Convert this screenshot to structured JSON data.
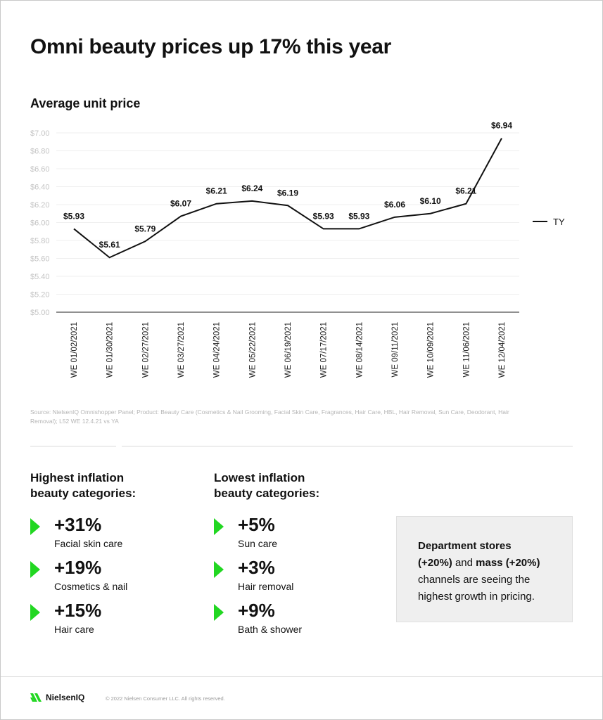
{
  "header": {
    "title": "Omni beauty prices up 17% this year",
    "subtitle": "Average unit price"
  },
  "chart_data": {
    "type": "line",
    "title": "Average unit price",
    "xlabel": "",
    "ylabel": "",
    "categories": [
      "WE 01/02/2021",
      "WE 01/30/2021",
      "WE 02/27/2021",
      "WE 03/27/2021",
      "WE 04/24/2021",
      "WE 05/22/2021",
      "WE 06/19/2021",
      "WE 07/17/2021",
      "WE 08/14/2021",
      "WE 09/11/2021",
      "WE 10/09/2021",
      "WE 11/06/2021",
      "WE 12/04/2021"
    ],
    "series": [
      {
        "name": "TY",
        "values": [
          5.93,
          5.61,
          5.79,
          6.07,
          6.21,
          6.24,
          6.19,
          5.93,
          5.93,
          6.06,
          6.1,
          6.21,
          6.94
        ],
        "labels": [
          "$5.93",
          "$5.61",
          "$5.79",
          "$6.07",
          "$6.21",
          "$6.24",
          "$6.19",
          "$5.93",
          "$5.93",
          "$6.06",
          "$6.10",
          "$6.21",
          "$6.94"
        ],
        "color": "#111111"
      }
    ],
    "ylim": [
      5.0,
      7.0
    ],
    "yticks": [
      5.0,
      5.2,
      5.4,
      5.6,
      5.8,
      6.0,
      6.2,
      6.4,
      6.6,
      6.8,
      7.0
    ],
    "ytick_labels": [
      "$5.00",
      "$5.20",
      "$5.40",
      "$5.60",
      "$5.80",
      "$6.00",
      "$6.20",
      "$6.40",
      "$6.60",
      "$6.80",
      "$7.00"
    ],
    "grid": true,
    "legend": "right",
    "source": "Source: NielsenIQ Omnishopper Panel; Product: Beauty Care (Cosmetics & Nail Grooming, Facial Skin Care, Fragrances, Hair Care, HBL, Hair Removal, Sun Care, Deodorant, Hair Removal); L52 WE 12.4.21 vs YA"
  },
  "highest": {
    "heading_line1": "Highest inflation",
    "heading_line2": "beauty categories:",
    "items": [
      {
        "pct": "+31%",
        "label": "Facial skin care"
      },
      {
        "pct": "+19%",
        "label": "Cosmetics & nail"
      },
      {
        "pct": "+15%",
        "label": "Hair care"
      }
    ]
  },
  "lowest": {
    "heading_line1": "Lowest inflation",
    "heading_line2": "beauty categories:",
    "items": [
      {
        "pct": "+5%",
        "label": "Sun care"
      },
      {
        "pct": "+3%",
        "label": "Hair removal"
      },
      {
        "pct": "+9%",
        "label": "Bath & shower"
      }
    ]
  },
  "callout": {
    "part1": "Department stores",
    "part2": "(+20%)",
    "part3": " and ",
    "part4": "mass (+20%)",
    "part5": " channels are seeing the highest growth in pricing."
  },
  "footer": {
    "brand": "NielsenIQ",
    "copyright": "© 2022 Nielsen Consumer LLC. All rights reserved."
  },
  "colors": {
    "accent": "#22d722",
    "line": "#111111",
    "grid": "#efefef",
    "muted": "#b5b5b5"
  }
}
